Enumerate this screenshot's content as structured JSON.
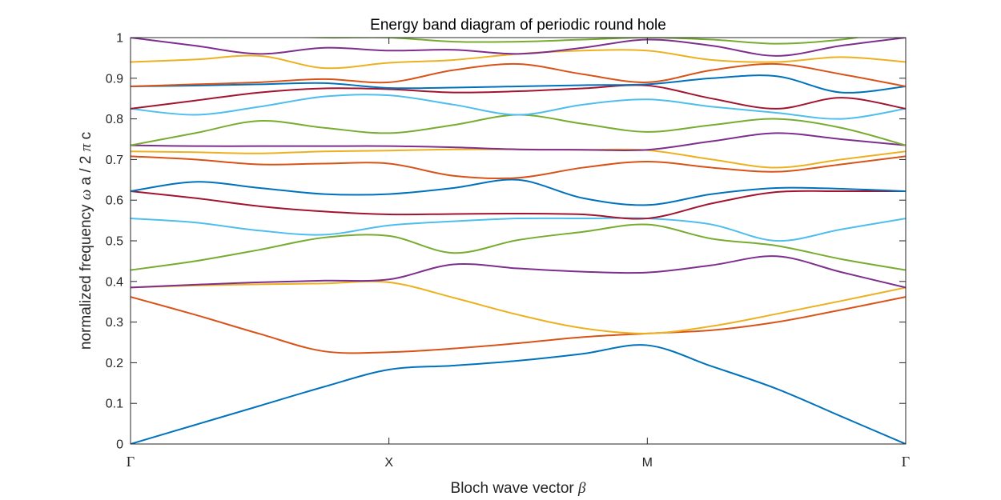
{
  "chart_data": {
    "type": "line",
    "title": "Energy band diagram of periodic round hole",
    "xlabel": {
      "before": "Bloch wave vector ",
      "symbol": "β"
    },
    "ylabel": {
      "part1": "normalized frequency ",
      "omega": "ω",
      "part2": " a / 2 ",
      "pi": "π",
      "part3": " c"
    },
    "ylim": [
      0,
      1
    ],
    "xlim": [
      0,
      3
    ],
    "grid": false,
    "legend": false,
    "x_ticks": [
      {
        "value": 0,
        "label": "Γ"
      },
      {
        "value": 1,
        "label": "X"
      },
      {
        "value": 2,
        "label": "M"
      },
      {
        "value": 3,
        "label": "Γ"
      }
    ],
    "y_ticks": [
      {
        "value": 0,
        "label": "0"
      },
      {
        "value": 0.1,
        "label": "0.1"
      },
      {
        "value": 0.2,
        "label": "0.2"
      },
      {
        "value": 0.3,
        "label": "0.3"
      },
      {
        "value": 0.4,
        "label": "0.4"
      },
      {
        "value": 0.5,
        "label": "0.5"
      },
      {
        "value": 0.6,
        "label": "0.6"
      },
      {
        "value": 0.7,
        "label": "0.7"
      },
      {
        "value": 0.8,
        "label": "0.8"
      },
      {
        "value": 0.9,
        "label": "0.9"
      },
      {
        "value": 1,
        "label": "1"
      }
    ],
    "x": [
      0,
      0.25,
      0.5,
      0.75,
      1.0,
      1.25,
      1.5,
      1.75,
      2.0,
      2.25,
      2.5,
      2.75,
      3.0
    ],
    "series": [
      {
        "color": "#0072BD",
        "values": [
          0.0,
          0.047,
          0.094,
          0.141,
          0.183,
          0.193,
          0.205,
          0.222,
          0.243,
          0.191,
          0.136,
          0.068,
          0.0
        ]
      },
      {
        "color": "#D95319",
        "values": [
          0.362,
          0.318,
          0.271,
          0.228,
          0.226,
          0.235,
          0.248,
          0.263,
          0.272,
          0.28,
          0.3,
          0.33,
          0.362
        ]
      },
      {
        "color": "#EDB120",
        "values": [
          0.385,
          0.39,
          0.393,
          0.395,
          0.398,
          0.36,
          0.318,
          0.285,
          0.272,
          0.29,
          0.32,
          0.352,
          0.385
        ]
      },
      {
        "color": "#7E2F8E",
        "values": [
          0.385,
          0.392,
          0.398,
          0.402,
          0.405,
          0.442,
          0.432,
          0.424,
          0.422,
          0.44,
          0.462,
          0.423,
          0.385
        ]
      },
      {
        "color": "#77AC30",
        "values": [
          0.428,
          0.45,
          0.478,
          0.508,
          0.512,
          0.47,
          0.502,
          0.522,
          0.54,
          0.505,
          0.488,
          0.455,
          0.428
        ]
      },
      {
        "color": "#4DBEEE",
        "values": [
          0.555,
          0.545,
          0.525,
          0.515,
          0.538,
          0.548,
          0.555,
          0.555,
          0.555,
          0.54,
          0.5,
          0.528,
          0.555
        ]
      },
      {
        "color": "#A2142F",
        "values": [
          0.622,
          0.605,
          0.585,
          0.572,
          0.565,
          0.566,
          0.567,
          0.565,
          0.555,
          0.592,
          0.62,
          0.622,
          0.622
        ]
      },
      {
        "color": "#0072BD",
        "values": [
          0.622,
          0.645,
          0.63,
          0.615,
          0.615,
          0.63,
          0.65,
          0.605,
          0.588,
          0.615,
          0.63,
          0.628,
          0.622
        ]
      },
      {
        "color": "#D95319",
        "values": [
          0.708,
          0.7,
          0.688,
          0.69,
          0.69,
          0.66,
          0.655,
          0.68,
          0.695,
          0.68,
          0.67,
          0.688,
          0.708
        ]
      },
      {
        "color": "#EDB120",
        "values": [
          0.72,
          0.718,
          0.715,
          0.72,
          0.722,
          0.725,
          0.725,
          0.724,
          0.723,
          0.7,
          0.68,
          0.7,
          0.72
        ]
      },
      {
        "color": "#7E2F8E",
        "values": [
          0.735,
          0.733,
          0.733,
          0.733,
          0.733,
          0.73,
          0.725,
          0.724,
          0.724,
          0.745,
          0.765,
          0.75,
          0.735
        ]
      },
      {
        "color": "#77AC30",
        "values": [
          0.735,
          0.765,
          0.795,
          0.778,
          0.765,
          0.785,
          0.81,
          0.788,
          0.768,
          0.785,
          0.8,
          0.778,
          0.735
        ]
      },
      {
        "color": "#4DBEEE",
        "values": [
          0.825,
          0.81,
          0.83,
          0.855,
          0.858,
          0.835,
          0.81,
          0.835,
          0.848,
          0.83,
          0.815,
          0.8,
          0.825
        ]
      },
      {
        "color": "#A2142F",
        "values": [
          0.825,
          0.845,
          0.865,
          0.875,
          0.873,
          0.865,
          0.868,
          0.875,
          0.882,
          0.85,
          0.825,
          0.852,
          0.825
        ]
      },
      {
        "color": "#0072BD",
        "values": [
          0.88,
          0.882,
          0.885,
          0.888,
          0.876,
          0.877,
          0.88,
          0.883,
          0.885,
          0.9,
          0.905,
          0.865,
          0.88
        ]
      },
      {
        "color": "#D95319",
        "values": [
          0.88,
          0.885,
          0.89,
          0.898,
          0.89,
          0.92,
          0.935,
          0.91,
          0.89,
          0.92,
          0.935,
          0.91,
          0.88
        ]
      },
      {
        "color": "#EDB120",
        "values": [
          0.94,
          0.946,
          0.955,
          0.925,
          0.938,
          0.945,
          0.96,
          0.968,
          0.968,
          0.945,
          0.94,
          0.952,
          0.94
        ]
      },
      {
        "color": "#7E2F8E",
        "values": [
          1.0,
          0.98,
          0.96,
          0.975,
          0.968,
          0.97,
          0.96,
          0.975,
          0.995,
          0.98,
          0.955,
          0.98,
          1.0
        ]
      },
      {
        "color": "#77AC30",
        "values": [
          1.04,
          1.02,
          1.005,
          1.0,
          1.0,
          0.99,
          0.99,
          0.995,
          1.0,
          0.995,
          0.985,
          0.995,
          1.02
        ]
      }
    ]
  }
}
